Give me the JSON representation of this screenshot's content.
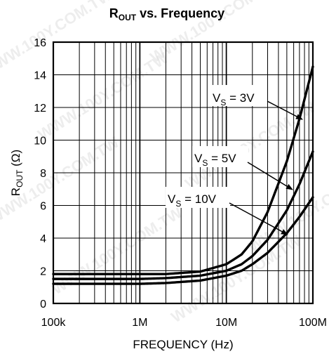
{
  "chart_data": {
    "type": "line",
    "title_main": "R",
    "title_sub": "OUT",
    "title_rest": " vs. Frequency",
    "xlabel": "FREQUENCY (Hz)",
    "ylabel_main": "R",
    "ylabel_sub": "OUT",
    "ylabel_rest": " (Ω)",
    "x_scale": "log",
    "xlim": [
      100000,
      100000000
    ],
    "ylim": [
      0,
      16
    ],
    "grid": true,
    "x_ticks": [
      {
        "value": 100000,
        "label": "100k"
      },
      {
        "value": 1000000,
        "label": "1M"
      },
      {
        "value": 10000000,
        "label": "10M"
      },
      {
        "value": 100000000,
        "label": "100M"
      }
    ],
    "y_ticks": [
      {
        "value": 0,
        "label": "0"
      },
      {
        "value": 2,
        "label": "2"
      },
      {
        "value": 4,
        "label": "4"
      },
      {
        "value": 6,
        "label": "6"
      },
      {
        "value": 8,
        "label": "8"
      },
      {
        "value": 10,
        "label": "10"
      },
      {
        "value": 12,
        "label": "12"
      },
      {
        "value": 14,
        "label": "14"
      },
      {
        "value": 16,
        "label": "16"
      }
    ],
    "series": [
      {
        "name_main": "V",
        "name_sub": "S",
        "name_rest": " = 3V",
        "x": [
          100000,
          1000000,
          2000000,
          5000000,
          10000000,
          15000000,
          20000000,
          30000000,
          50000000,
          70000000,
          100000000
        ],
        "y": [
          1.8,
          1.8,
          1.8,
          1.95,
          2.4,
          3.0,
          3.8,
          5.6,
          8.7,
          11.3,
          14.5
        ]
      },
      {
        "name_main": "V",
        "name_sub": "S",
        "name_rest": " = 5V",
        "x": [
          100000,
          1000000,
          2000000,
          5000000,
          10000000,
          15000000,
          20000000,
          30000000,
          50000000,
          70000000,
          100000000
        ],
        "y": [
          1.5,
          1.5,
          1.55,
          1.7,
          2.0,
          2.4,
          2.9,
          3.9,
          5.7,
          7.3,
          9.3
        ]
      },
      {
        "name_main": "V",
        "name_sub": "S",
        "name_rest": " = 10V",
        "x": [
          100000,
          1000000,
          2000000,
          5000000,
          10000000,
          15000000,
          20000000,
          30000000,
          50000000,
          70000000,
          100000000
        ],
        "y": [
          1.2,
          1.2,
          1.25,
          1.4,
          1.7,
          2.0,
          2.4,
          3.1,
          4.3,
          5.3,
          6.5
        ]
      }
    ]
  },
  "watermark": "WWW.100Y.COM.TW",
  "colors": {
    "line": "#000000",
    "grid": "#000000",
    "background": "#ffffff",
    "watermark": "#d9d9d9"
  }
}
